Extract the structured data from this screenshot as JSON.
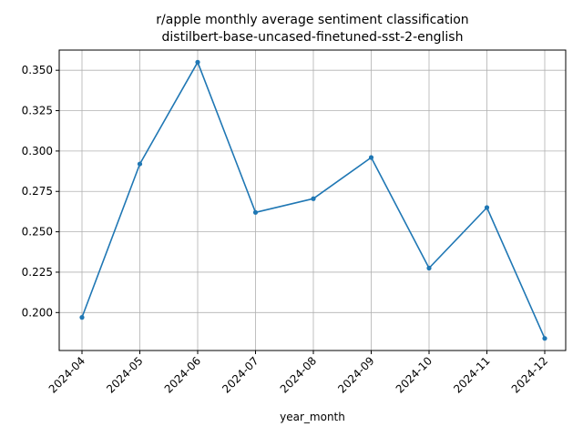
{
  "chart_data": {
    "type": "line",
    "title": "r/apple monthly average sentiment classification",
    "subtitle": "distilbert-base-uncased-finetuned-sst-2-english",
    "xlabel": "year_month",
    "ylabel": "",
    "categories": [
      "2024-04",
      "2024-05",
      "2024-06",
      "2024-07",
      "2024-08",
      "2024-09",
      "2024-10",
      "2024-11",
      "2024-12"
    ],
    "series": [
      {
        "values": [
          0.197,
          0.292,
          0.355,
          0.262,
          0.2705,
          0.296,
          0.2275,
          0.265,
          0.184
        ]
      }
    ],
    "ylim": [
      0.1765,
      0.3625
    ],
    "yticks": [
      "0.200",
      "0.225",
      "0.250",
      "0.275",
      "0.300",
      "0.325",
      "0.350"
    ],
    "grid": true,
    "line_color": "#1f77b4",
    "marker": "dot"
  }
}
